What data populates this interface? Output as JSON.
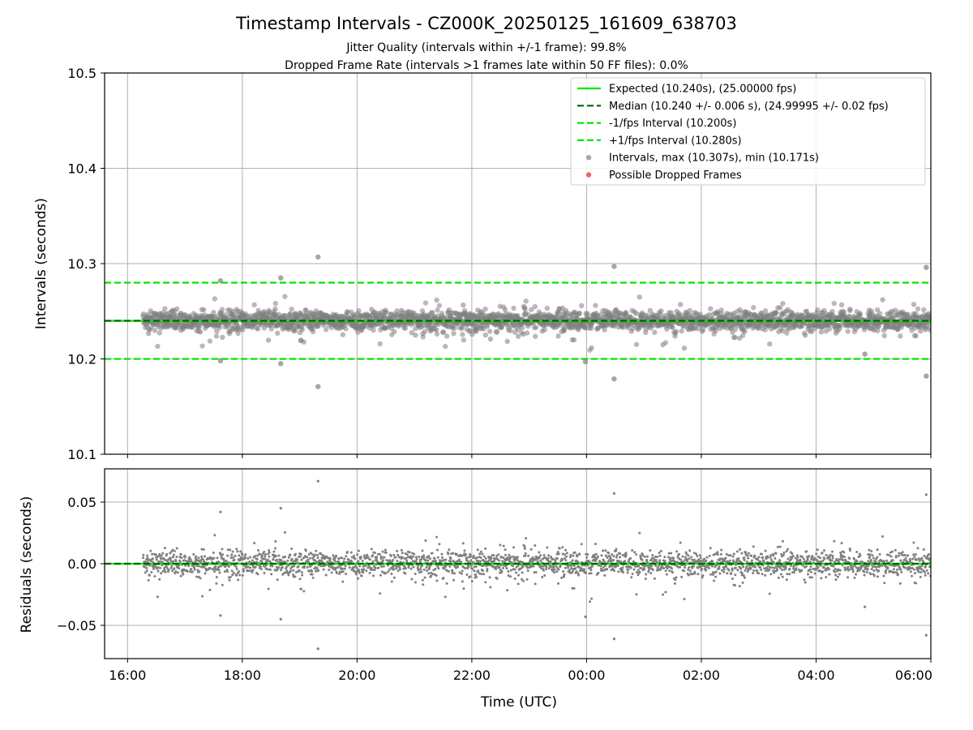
{
  "title": "Timestamp Intervals - CZ000K_20250125_161609_638703",
  "subtitle_lines": [
    "Jitter Quality (intervals within +/-1 frame): 99.8%",
    "Dropped Frame Rate (intervals >1 frames late within 50 FF files): 0.0%"
  ],
  "colors": {
    "expected": "#00e600",
    "median": "#006400",
    "interval_lines": "#00e600",
    "points": "#808080",
    "dropped": "#e8585a",
    "grid": "#b0b0b0"
  },
  "chart_data": [
    {
      "type": "scatter",
      "panel": "top",
      "ylabel": "Intervals (seconds)",
      "xlabel": "",
      "ylim": [
        10.1,
        10.5
      ],
      "yticks": [
        10.1,
        10.2,
        10.3,
        10.4,
        10.5
      ],
      "ytick_labels": [
        "10.1",
        "10.2",
        "10.3",
        "10.4",
        "10.5"
      ],
      "x_time_range_hours": [
        15.6,
        30.0
      ],
      "x_data_start_hour": 16.27,
      "x_data_end_hour": 30.0,
      "grid": true,
      "legend_position": "top-right",
      "legend": [
        {
          "label": "Expected (10.240s), (25.00000 fps)",
          "style": "solid-line",
          "color": "#00e600"
        },
        {
          "label": "Median (10.240 +/- 0.006 s), (24.99995 +/- 0.02 fps)",
          "style": "dashed-line",
          "color": "#006400"
        },
        {
          "label": "-1/fps Interval (10.200s)",
          "style": "dashed-line",
          "color": "#00e600"
        },
        {
          "label": "+1/fps Interval (10.280s)",
          "style": "dashed-line",
          "color": "#00e600"
        },
        {
          "label": "Intervals, max (10.307s), min (10.171s)",
          "style": "marker",
          "color": "#a0a0a0"
        },
        {
          "label": "Possible Dropped Frames",
          "style": "marker",
          "color": "#e8585a"
        }
      ],
      "reference_lines": [
        {
          "name": "Expected",
          "y": 10.24,
          "style": "solid",
          "color": "#00e600"
        },
        {
          "name": "Median",
          "y": 10.24,
          "style": "dashed",
          "color": "#006400"
        },
        {
          "name": "-1/fps Interval",
          "y": 10.2,
          "style": "dashed",
          "color": "#00e600"
        },
        {
          "name": "+1/fps Interval",
          "y": 10.28,
          "style": "dashed",
          "color": "#00e600"
        }
      ],
      "baseline_interval": 10.24,
      "typical_spread": 0.006,
      "outliers": [
        {
          "hour": 19.32,
          "y": 10.307
        },
        {
          "hour": 19.32,
          "y": 10.171
        },
        {
          "hour": 0.48,
          "y": 10.297
        },
        {
          "hour": 0.48,
          "y": 10.179
        },
        {
          "hour": 5.92,
          "y": 10.296
        },
        {
          "hour": 5.92,
          "y": 10.182
        },
        {
          "hour": 18.67,
          "y": 10.285
        },
        {
          "hour": 18.67,
          "y": 10.195
        },
        {
          "hour": 17.62,
          "y": 10.282
        },
        {
          "hour": 17.62,
          "y": 10.198
        },
        {
          "hour": 23.98,
          "y": 10.197
        },
        {
          "hour": 4.85,
          "y": 10.205
        }
      ]
    },
    {
      "type": "scatter",
      "panel": "bottom",
      "ylabel": "Residuals (seconds)",
      "xlabel": "Time (UTC)",
      "ylim": [
        -0.077,
        0.077
      ],
      "yticks": [
        -0.05,
        0.0,
        0.05
      ],
      "ytick_labels": [
        "−0.05",
        "0.00",
        "0.05"
      ],
      "xticks_hours": [
        16,
        18,
        20,
        22,
        24,
        26,
        28,
        30
      ],
      "xtick_labels": [
        "16:00",
        "18:00",
        "20:00",
        "22:00",
        "00:00",
        "02:00",
        "04:00",
        "06:00"
      ],
      "reference_lines": [
        {
          "name": "zero",
          "y": 0.0,
          "style": "solid",
          "color": "#00e600"
        },
        {
          "name": "median-zero",
          "y": 0.0,
          "style": "dashed",
          "color": "#006400"
        }
      ],
      "grid": true
    }
  ]
}
